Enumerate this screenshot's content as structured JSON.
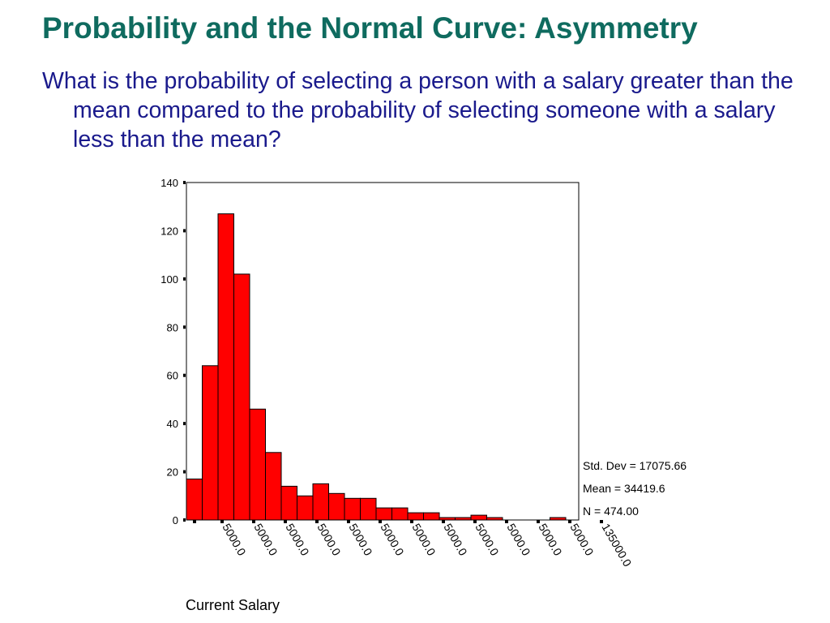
{
  "slide": {
    "title": "Probability and the Normal Curve: Asymmetry",
    "question": "What is the probability of selecting a person with a salary greater than the mean compared to the probability of selecting someone with a salary less than the mean?"
  },
  "chart_data": {
    "type": "bar",
    "title": "",
    "xlabel": "Current Salary",
    "ylabel": "",
    "bar_color": "#ff0000",
    "ylim": [
      0,
      140
    ],
    "y_ticks": [
      0,
      20,
      40,
      60,
      80,
      100,
      120,
      140
    ],
    "x_tick_labels": [
      "5000.0",
      "5000.0",
      "5000.0",
      "5000.0",
      "5000.0",
      "5000.0",
      "5000.0",
      "5000.0",
      "5000.0",
      "5000.0",
      "5000.0",
      "5000.0",
      "135000.0"
    ],
    "values": [
      17,
      64,
      127,
      102,
      46,
      28,
      14,
      10,
      15,
      11,
      9,
      9,
      5,
      5,
      3,
      3,
      1,
      1,
      2,
      1,
      0,
      0,
      0,
      1
    ],
    "stats": [
      "Std. Dev = 17075.66",
      "Mean = 34419.6",
      "N = 474.00"
    ]
  }
}
